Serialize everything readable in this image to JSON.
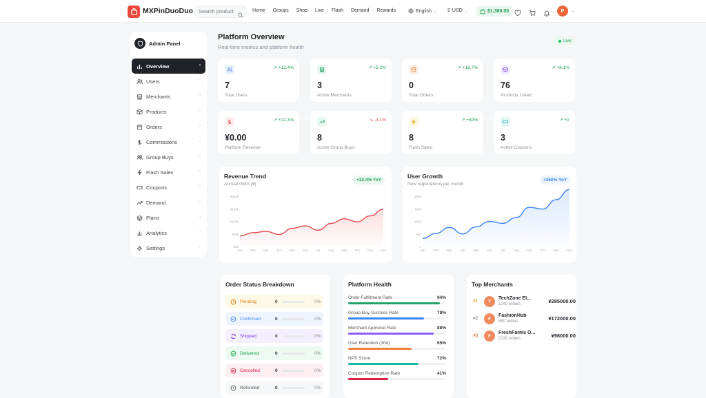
{
  "brand": "MXPinDuoDuo",
  "search": {
    "placeholder": "Search product"
  },
  "nav": [
    "Home",
    "Groups",
    "Shop",
    "Live",
    "Flash",
    "Demand",
    "Rewards"
  ],
  "language": "English",
  "currency": "USD",
  "wallet_balance": "$1,380.00",
  "avatar_initial": "P",
  "sidebar": {
    "title": "Admin Panel",
    "items": [
      {
        "label": "Overview",
        "icon": "bar-chart-icon",
        "active": true
      },
      {
        "label": "Users",
        "icon": "users-icon"
      },
      {
        "label": "Merchants",
        "icon": "store-icon"
      },
      {
        "label": "Products",
        "icon": "box-icon"
      },
      {
        "label": "Orders",
        "icon": "calendar-icon"
      },
      {
        "label": "Commissions",
        "icon": "dollar-icon"
      },
      {
        "label": "Group Buys",
        "icon": "group-icon"
      },
      {
        "label": "Flash Sales",
        "icon": "lightning-icon"
      },
      {
        "label": "Coupons",
        "icon": "ticket-icon"
      },
      {
        "label": "Demand",
        "icon": "trend-icon"
      },
      {
        "label": "Plans",
        "icon": "layers-icon"
      },
      {
        "label": "Analytics",
        "icon": "chart-icon"
      },
      {
        "label": "Settings",
        "icon": "gear-icon"
      }
    ]
  },
  "page": {
    "title": "Platform Overview",
    "subtitle": "Real-time metrics and platform health",
    "live_label": "Live"
  },
  "stats": [
    {
      "value": "7",
      "label": "Total Users",
      "delta": "↗ +12.4%",
      "up": true,
      "icon": "users-icon",
      "color": "#5b8def",
      "bg": "#eaf1fe"
    },
    {
      "value": "3",
      "label": "Active Merchants",
      "delta": "↗ +5.2%",
      "up": true,
      "icon": "store-icon",
      "color": "#22a06b",
      "bg": "#e7f7ee"
    },
    {
      "value": "0",
      "label": "Total Orders",
      "delta": "↗ +18.7%",
      "up": true,
      "icon": "calendar-icon",
      "color": "#f0803c",
      "bg": "#fdf0e6"
    },
    {
      "value": "76",
      "label": "Products Listed",
      "delta": "↗ +8.1%",
      "up": true,
      "icon": "box-icon",
      "color": "#8b5cf6",
      "bg": "#f1ebfe"
    },
    {
      "value": "¥0.00",
      "label": "Platform Revenue",
      "delta": "↗ +22.3%",
      "up": true,
      "icon": "dollar-icon",
      "color": "#e5484d",
      "bg": "#fdeced"
    },
    {
      "value": "8",
      "label": "Active Group Buys",
      "delta": "↘ -3.1%",
      "up": false,
      "icon": "trend-icon",
      "color": "#22a06b",
      "bg": "#e7f7ee"
    },
    {
      "value": "8",
      "label": "Flash Sales",
      "delta": "↗ +40%",
      "up": true,
      "icon": "lightning-icon",
      "color": "#e6a817",
      "bg": "#fdf6e2"
    },
    {
      "value": "3",
      "label": "Active Coupons",
      "delta": "↗ +2",
      "up": true,
      "icon": "ticket-icon",
      "color": "#14b8a6",
      "bg": "#e4f7f5"
    }
  ],
  "revenue_trend": {
    "title": "Revenue Trend",
    "subtitle": "Annual GMV (¥)",
    "badge": "+32.4% YoY"
  },
  "user_growth": {
    "title": "User Growth",
    "subtitle": "New registrations per month",
    "badge": "+350% YoY"
  },
  "chart_data": [
    {
      "type": "area",
      "title": "Revenue Trend",
      "categories": [
        "Jan",
        "Feb",
        "Mar",
        "Apr",
        "May",
        "Jun",
        "Jul",
        "Aug",
        "Sep",
        "Oct",
        "Nov",
        "Dec"
      ],
      "ytick_labels": [
        "¥0k",
        "¥50k",
        "¥100k",
        "¥150k",
        "¥200k"
      ],
      "ylim": [
        0,
        200000
      ],
      "values": [
        42000,
        55000,
        60000,
        48000,
        72000,
        82000,
        65000,
        92000,
        110000,
        98000,
        122000,
        148000
      ],
      "color": "#e5484d",
      "grid": false
    },
    {
      "type": "area",
      "title": "User Growth",
      "categories": [
        "Jan",
        "Feb",
        "Mar",
        "Apr",
        "May",
        "Jun",
        "Jul",
        "Aug",
        "Sep",
        "Oct",
        "Nov",
        "Dec"
      ],
      "ytick_labels": [
        "0",
        "500",
        "1000",
        "1500",
        "2000"
      ],
      "ylim": [
        0,
        2000
      ],
      "values": [
        320,
        520,
        760,
        500,
        780,
        1000,
        920,
        1150,
        1560,
        1490,
        1860,
        2270
      ],
      "color": "#3b82f6",
      "grid": false
    }
  ],
  "order_status": {
    "title": "Order Status Breakdown",
    "rows": [
      {
        "label": "Pending",
        "count": "0",
        "pct": "0%",
        "color": "#d97706",
        "bg": "#fef9e7",
        "icon": "clock-icon"
      },
      {
        "label": "Confirmed",
        "count": "0",
        "pct": "0%",
        "color": "#3b82f6",
        "bg": "#eef4fe",
        "icon": "check-circle-icon"
      },
      {
        "label": "Shipped",
        "count": "0",
        "pct": "0%",
        "color": "#7c3aed",
        "bg": "#f4effe",
        "icon": "truck-icon"
      },
      {
        "label": "Delivered",
        "count": "0",
        "pct": "0%",
        "color": "#16a34a",
        "bg": "#ecfaf1",
        "icon": "check-circle-icon"
      },
      {
        "label": "Cancelled",
        "count": "0",
        "pct": "0%",
        "color": "#e11d48",
        "bg": "#fdeef1",
        "icon": "x-circle-icon"
      },
      {
        "label": "Refunded",
        "count": "0",
        "pct": "0%",
        "color": "#555",
        "bg": "#f6f7f9",
        "icon": "refund-icon"
      }
    ]
  },
  "platform_health": {
    "title": "Platform Health",
    "rows": [
      {
        "label": "Order Fulfillment Rate",
        "pct": "94%",
        "value": 0.94,
        "color": "#22a06b"
      },
      {
        "label": "Group Buy Success Rate",
        "pct": "78%",
        "value": 0.78,
        "color": "#3b82f6"
      },
      {
        "label": "Merchant Approval Rate",
        "pct": "88%",
        "value": 0.88,
        "color": "#8b5cf6"
      },
      {
        "label": "User Retention (30d)",
        "pct": "65%",
        "value": 0.65,
        "color": "#f0803c"
      },
      {
        "label": "NPS Score",
        "pct": "72%",
        "value": 0.72,
        "color": "#14b8a6"
      },
      {
        "label": "Coupon Redemption Rate",
        "pct": "41%",
        "value": 0.41,
        "color": "#e11d48"
      }
    ]
  },
  "top_merchants": {
    "title": "Top Merchants",
    "rows": [
      {
        "rank": "#1",
        "initial": "T",
        "name": "TechZone El...",
        "orders": "1240 orders",
        "amount": "¥285000.00",
        "rank_color": "#e6a817"
      },
      {
        "rank": "#2",
        "initial": "F",
        "name": "FashionHub",
        "orders": "890 orders",
        "amount": "¥172000.00",
        "rank_color": "#888"
      },
      {
        "rank": "#3",
        "initial": "F",
        "name": "FreshFarms O...",
        "orders": "2130 orders",
        "amount": "¥98000.00",
        "rank_color": "#e07b39"
      }
    ]
  }
}
